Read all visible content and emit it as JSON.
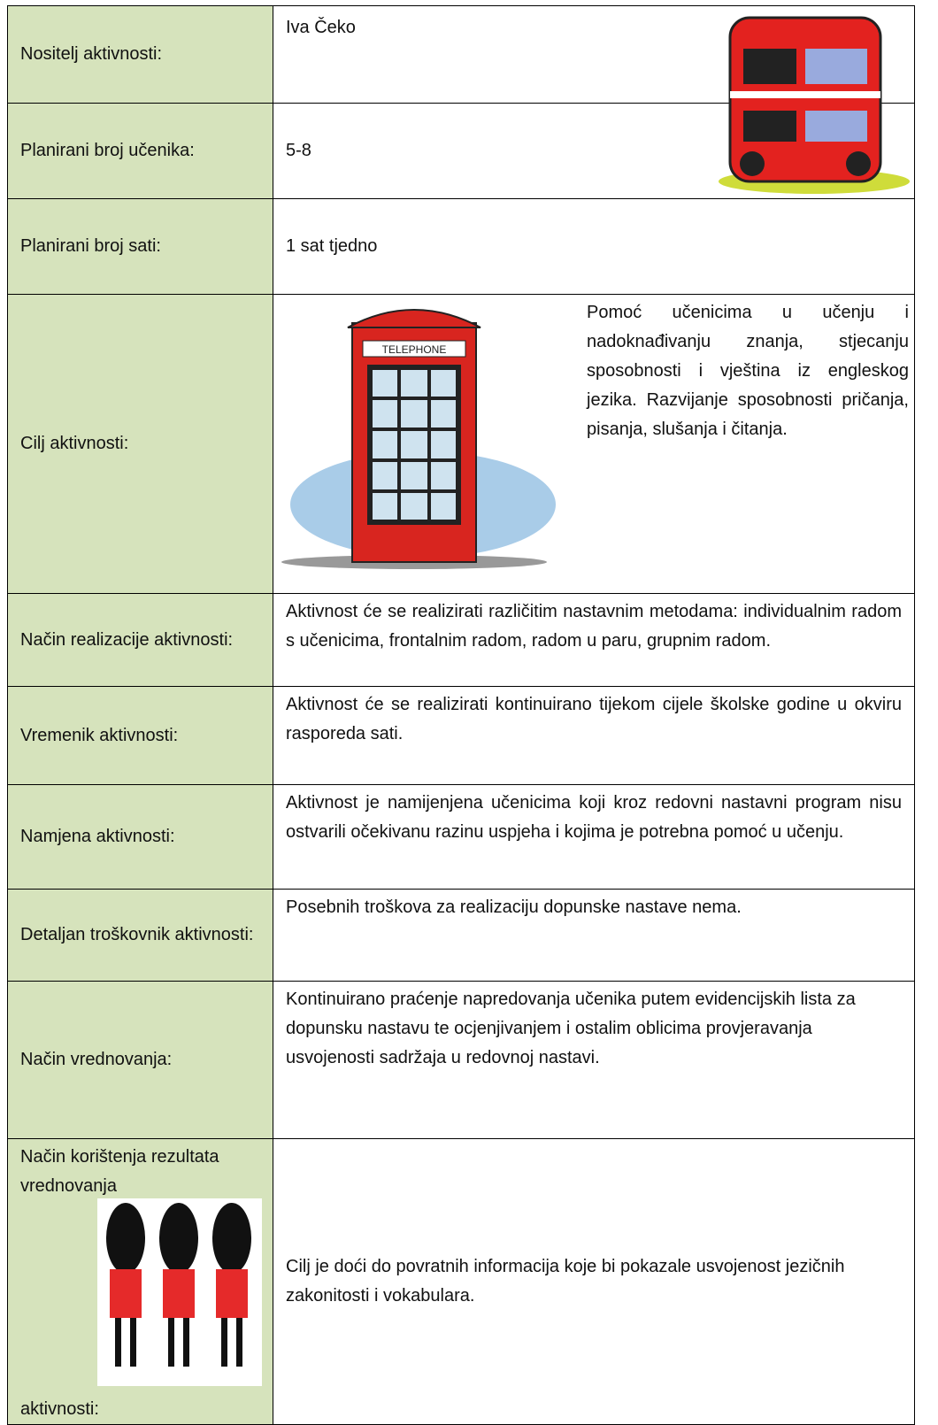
{
  "table": {
    "rows": [
      {
        "label": "Nositelj aktivnosti:",
        "value": "Iva Čeko"
      },
      {
        "label": "Planirani broj učenika:",
        "value": "5-8"
      },
      {
        "label": "Planirani broj sati:",
        "value": "1 sat tjedno"
      },
      {
        "label": "Cilj aktivnosti:",
        "value": "Pomoć učenicima u učenju i nadoknađivanju znanja, stjecanju sposobnosti i vještina iz engleskog jezika. Razvijanje sposobnosti pričanja, pisanja, slušanja i čitanja."
      },
      {
        "label": "Način realizacije aktivnosti:",
        "value": "Aktivnost će se realizirati različitim nastavnim metodama: individualnim radom s učenicima, frontalnim radom, radom u paru, grupnim radom."
      },
      {
        "label": "Vremenik aktivnosti:",
        "value": "Aktivnost će se realizirati kontinuirano tijekom cijele školske godine u okviru rasporeda sati."
      },
      {
        "label": "Namjena aktivnosti:",
        "value": "Aktivnost je namijenjena učenicima koji kroz redovni nastavni program nisu ostvarili očekivanu razinu uspjeha i kojima je potrebna pomoć u učenju."
      },
      {
        "label": "Detaljan troškovnik aktivnosti:",
        "value": "Posebnih troškova za realizaciju dopunske nastave nema."
      },
      {
        "label": "Način vrednovanja:",
        "value": "Kontinuirano praćenje napredovanja učenika putem evidencijskih lista za dopunsku nastavu te ocjenjivanjem i ostalim oblicima provjeravanja usvojenosti sadržaja u redovnoj nastavi."
      },
      {
        "label": [
          "Način korištenja rezultata vrednovanja",
          "aktivnosti:"
        ],
        "value": "Cilj je doći do povratnih informacija koje bi pokazale usvojenost jezičnih zakonitosti i vokabulara."
      }
    ]
  },
  "images": {
    "telephone_sign": "TELEPHONE"
  }
}
